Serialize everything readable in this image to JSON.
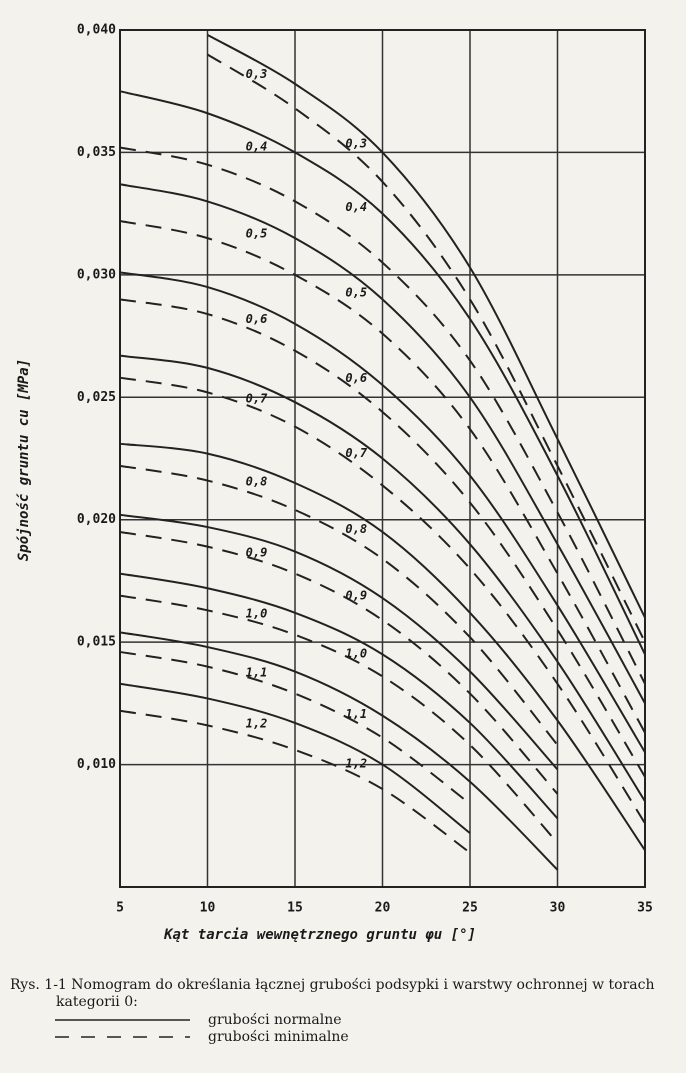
{
  "chart_data": {
    "type": "line",
    "x_label": "Kąt tarcia wewnętrznego gruntu φu [°]",
    "y_label": "Spójność gruntu cu [MPa]",
    "caption": "Rys. 1-1 Nomogram do określania łącznej grubości podsypki i warstwy ochronnej w torach",
    "caption_line2": "kategorii 0:",
    "legend": {
      "normal": "grubości normalne",
      "minimal": "grubości minimalne"
    },
    "color": "#222222",
    "grid": true,
    "x": [
      5,
      10,
      15,
      20,
      25,
      30,
      35
    ],
    "xlim": [
      5,
      35
    ],
    "xticks": [
      5,
      10,
      15,
      20,
      25,
      30,
      35
    ],
    "ylim": [
      0.005,
      0.04
    ],
    "yticks": [
      {
        "value": 0.01,
        "label": "0,010"
      },
      {
        "value": 0.015,
        "label": "0,015"
      },
      {
        "value": 0.02,
        "label": "0,020"
      },
      {
        "value": 0.025,
        "label": "0,025"
      },
      {
        "value": 0.03,
        "label": "0,030"
      },
      {
        "value": 0.035,
        "label": "0,035"
      },
      {
        "value": 0.04,
        "label": "0,040"
      }
    ],
    "series": [
      {
        "name": "0,3",
        "values": [
          null,
          0.0398,
          0.0378,
          0.035,
          0.0303,
          0.0233,
          0.016
        ],
        "min_values": [
          null,
          0.039,
          0.0368,
          0.0338,
          0.029,
          0.0222,
          0.015
        ]
      },
      {
        "name": "0,4",
        "values": [
          0.0375,
          0.0366,
          0.035,
          0.0325,
          0.0282,
          0.0218,
          0.0145
        ],
        "min_values": [
          0.0352,
          0.0345,
          0.033,
          0.0305,
          0.0265,
          0.0203,
          0.0133
        ]
      },
      {
        "name": "0,5",
        "values": [
          0.0337,
          0.033,
          0.0315,
          0.029,
          0.025,
          0.019,
          0.0125
        ],
        "min_values": [
          0.0322,
          0.0315,
          0.03,
          0.0276,
          0.0237,
          0.0178,
          0.0113
        ]
      },
      {
        "name": "0,6",
        "values": [
          0.0301,
          0.0295,
          0.028,
          0.0255,
          0.0218,
          0.0165,
          0.0105
        ],
        "min_values": [
          0.029,
          0.0284,
          0.0269,
          0.0244,
          0.0207,
          0.0155,
          0.0095
        ]
      },
      {
        "name": "0,7",
        "values": [
          0.0267,
          0.0262,
          0.0248,
          0.0225,
          0.019,
          0.0142,
          0.0085
        ],
        "min_values": [
          0.0258,
          0.0252,
          0.0238,
          0.0214,
          0.018,
          0.0133,
          0.0076
        ]
      },
      {
        "name": "0,8",
        "values": [
          0.0231,
          0.0227,
          0.0215,
          0.0195,
          0.0162,
          0.0118,
          0.0065
        ],
        "min_values": [
          0.0222,
          0.0216,
          0.0204,
          0.0184,
          0.0152,
          0.0108,
          null
        ]
      },
      {
        "name": "0,9",
        "values": [
          0.0202,
          0.0197,
          0.0187,
          0.0168,
          0.0138,
          0.0098,
          null
        ],
        "min_values": [
          0.0195,
          0.0189,
          0.0178,
          0.0159,
          0.0129,
          0.0088,
          null
        ]
      },
      {
        "name": "1,0",
        "values": [
          0.0178,
          0.0172,
          0.0162,
          0.0145,
          0.0117,
          0.0078,
          null
        ],
        "min_values": [
          0.0169,
          0.0163,
          0.0153,
          0.0136,
          0.0108,
          0.0068,
          null
        ]
      },
      {
        "name": "1,1",
        "values": [
          0.0154,
          0.0148,
          0.0138,
          0.012,
          0.0093,
          0.0057,
          null
        ],
        "min_values": [
          0.0146,
          0.014,
          0.0129,
          0.0111,
          0.0084,
          null,
          null
        ]
      },
      {
        "name": "1,2",
        "values": [
          0.0133,
          0.0127,
          0.0117,
          0.01,
          0.0072,
          null,
          null
        ],
        "min_values": [
          0.0122,
          0.0116,
          0.0106,
          0.009,
          0.0064,
          null,
          null
        ]
      }
    ]
  }
}
